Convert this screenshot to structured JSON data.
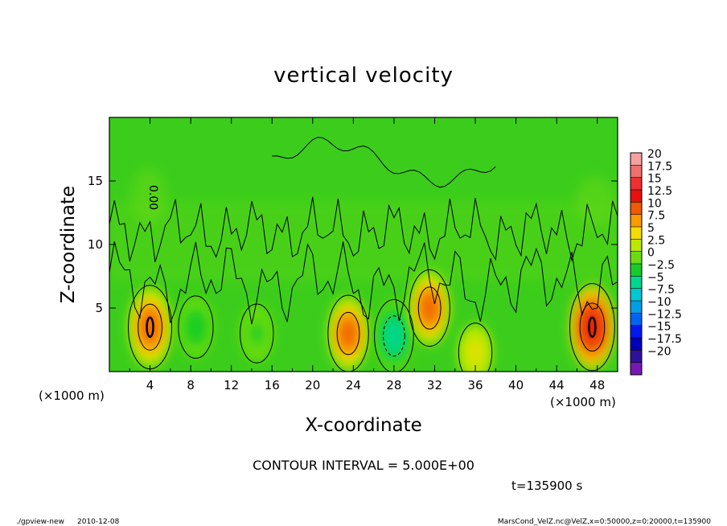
{
  "chart_data": {
    "type": "heatmap",
    "title": "vertical velocity",
    "xlabel": "X-coordinate",
    "ylabel": "Z-coordinate",
    "x_units": "(×1000 m)",
    "y_units": "(×1000 m)",
    "xlim": [
      0,
      50
    ],
    "ylim": [
      0,
      20
    ],
    "x_ticks": [
      "4",
      "8",
      "12",
      "16",
      "20",
      "24",
      "28",
      "32",
      "36",
      "40",
      "44",
      "48"
    ],
    "y_ticks": [
      "5",
      "10",
      "15"
    ],
    "colorbar": {
      "labels": [
        "20",
        "17.5",
        "15",
        "12.5",
        "10",
        "7.5",
        "5",
        "2.5",
        "0",
        "−2.5",
        "−5",
        "−7.5",
        "−10",
        "−12.5",
        "−15",
        "−17.5",
        "−20"
      ],
      "colors": [
        "#f6a0a0",
        "#f07070",
        "#ee3030",
        "#e81010",
        "#f05a00",
        "#fc9a00",
        "#f4dc00",
        "#bce800",
        "#6cdc10",
        "#18cc28",
        "#00d88c",
        "#00c8d2",
        "#009ee6",
        "#0064f2",
        "#0018ee",
        "#0000b8",
        "#30109a",
        "#7818b4"
      ]
    },
    "contour_interval": "CONTOUR INTERVAL = 5.000E+00",
    "time_label": "t=135900  s",
    "features": [
      {
        "x": 4,
        "z": 3.5,
        "w": 10,
        "sign": "up"
      },
      {
        "x": 8.5,
        "z": 3.5,
        "w": -4,
        "sign": "down"
      },
      {
        "x": 14.5,
        "z": 3,
        "w": -3,
        "sign": "down"
      },
      {
        "x": 23.5,
        "z": 3,
        "w": 8,
        "sign": "up"
      },
      {
        "x": 28,
        "z": 2.8,
        "w": -7,
        "sign": "down"
      },
      {
        "x": 31.5,
        "z": 5,
        "w": 8,
        "sign": "up"
      },
      {
        "x": 36,
        "z": 1.5,
        "w": 3,
        "sign": "up"
      },
      {
        "x": 47.5,
        "z": 3.5,
        "w": 11,
        "sign": "up"
      }
    ]
  },
  "footer": {
    "program": "./gpview-new",
    "date": "2010-12-08",
    "source": "MarsCond_VelZ.nc@VelZ,x=0:50000,z=0:20000,t=135900"
  },
  "labels": {
    "contour_label": "0.00"
  }
}
